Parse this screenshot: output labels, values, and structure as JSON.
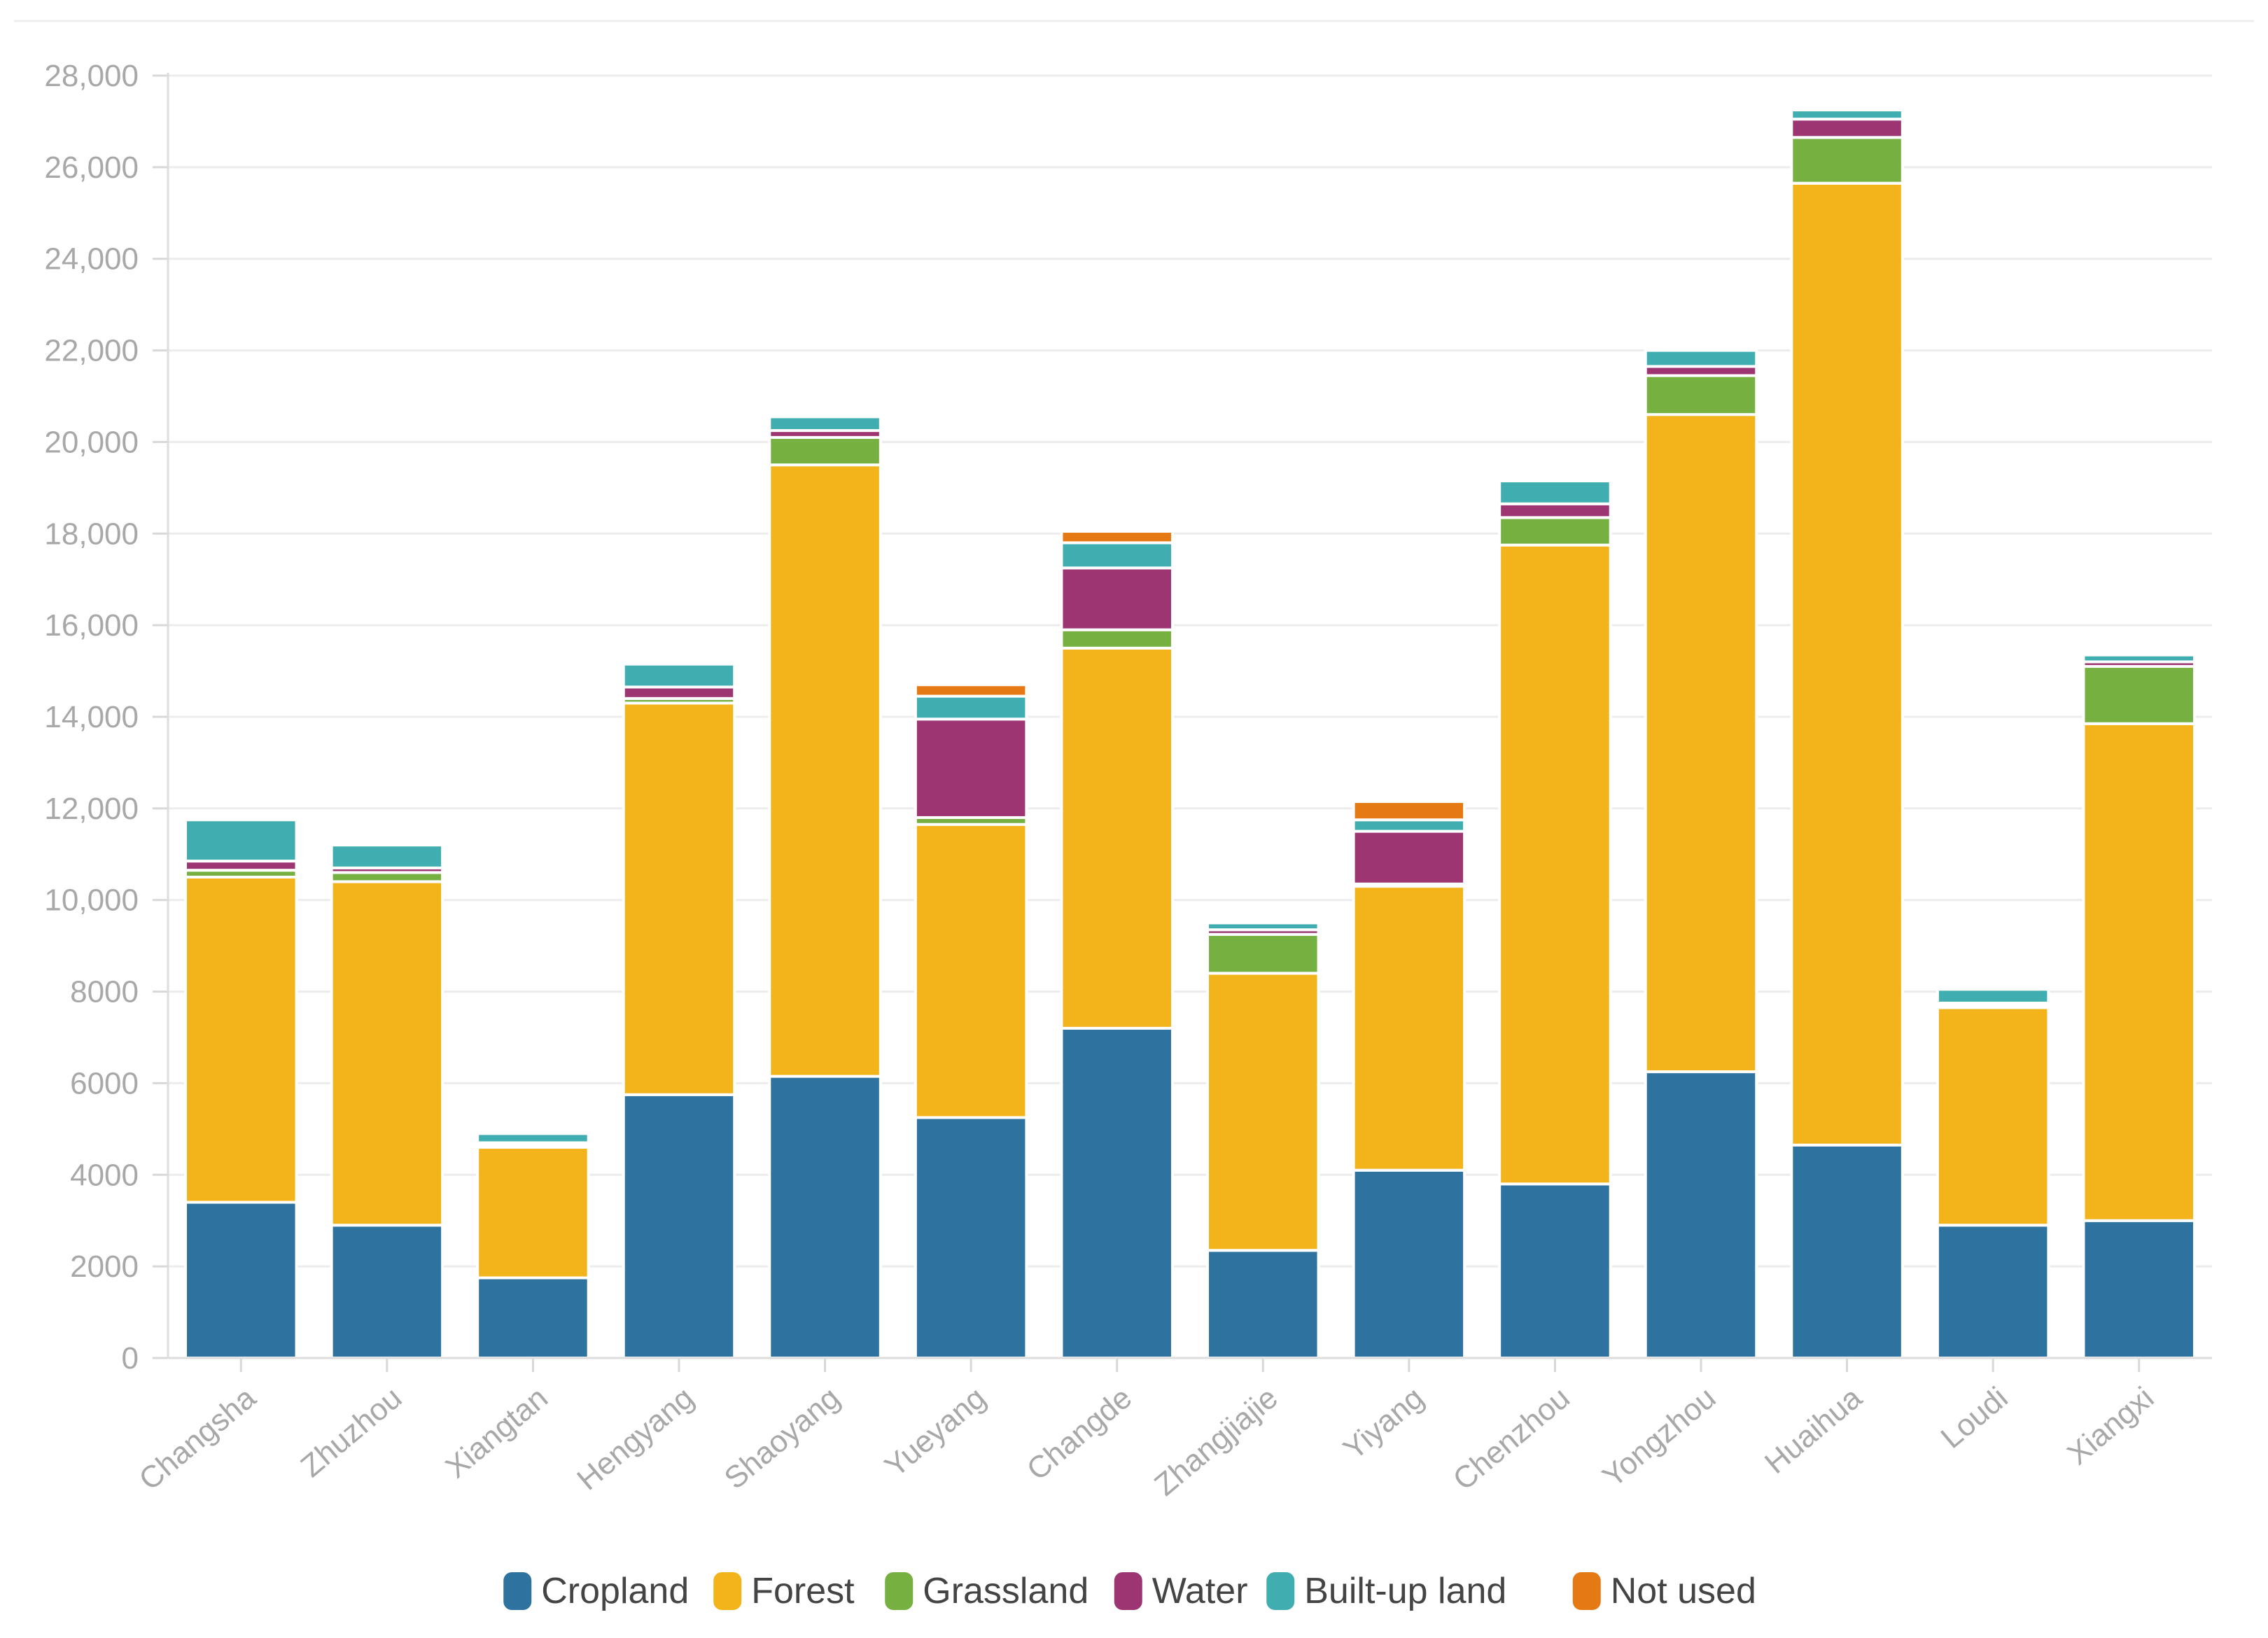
{
  "chart_data": {
    "type": "bar",
    "stacked": true,
    "title": "",
    "xlabel": "",
    "ylabel": "",
    "ylim": [
      0,
      28000
    ],
    "grid": true,
    "legend_position": "bottom",
    "yticks": [
      0,
      2000,
      4000,
      6000,
      8000,
      10000,
      12000,
      14000,
      16000,
      18000,
      20000,
      22000,
      24000,
      26000,
      28000
    ],
    "ytick_labels": [
      "0",
      "2000",
      "4000",
      "6000",
      "8000",
      "10,000",
      "12,000",
      "14,000",
      "16,000",
      "18,000",
      "20,000",
      "22,000",
      "24,000",
      "26,000",
      "28,000"
    ],
    "categories": [
      "Changsha",
      "Zhuzhou",
      "Xiangtan",
      "Hengyang",
      "Shaoyang",
      "Yueyang",
      "Changde",
      "Zhangjiajie",
      "Yiyang",
      "Chenzhou",
      "Yongzhou",
      "Huaihua",
      "Loudi",
      "Xiangxi"
    ],
    "series": [
      {
        "name": "Cropland",
        "color": "#2e72a0",
        "values": [
          3400,
          2900,
          1750,
          5750,
          6150,
          5250,
          7200,
          2350,
          4100,
          3800,
          6250,
          4650,
          2900,
          3000
        ]
      },
      {
        "name": "Forest",
        "color": "#f2b31b",
        "values": [
          7100,
          7500,
          2850,
          8550,
          13350,
          6400,
          8300,
          6050,
          6200,
          13950,
          14350,
          21000,
          4750,
          10850
        ]
      },
      {
        "name": "Grassland",
        "color": "#76b041",
        "values": [
          150,
          200,
          50,
          100,
          600,
          150,
          400,
          850,
          50,
          600,
          850,
          1000,
          50,
          1250
        ]
      },
      {
        "name": "Water",
        "color": "#9c3572",
        "values": [
          200,
          100,
          50,
          250,
          150,
          2150,
          1350,
          100,
          1150,
          300,
          200,
          400,
          50,
          100
        ]
      },
      {
        "name": "Built-up land",
        "color": "#40aeb0",
        "values": [
          900,
          500,
          200,
          500,
          300,
          500,
          550,
          150,
          250,
          500,
          350,
          200,
          300,
          150
        ]
      },
      {
        "name": "Not used",
        "color": "#e57a14",
        "values": [
          0,
          0,
          0,
          0,
          0,
          250,
          250,
          0,
          400,
          0,
          0,
          0,
          0,
          0
        ]
      }
    ]
  }
}
